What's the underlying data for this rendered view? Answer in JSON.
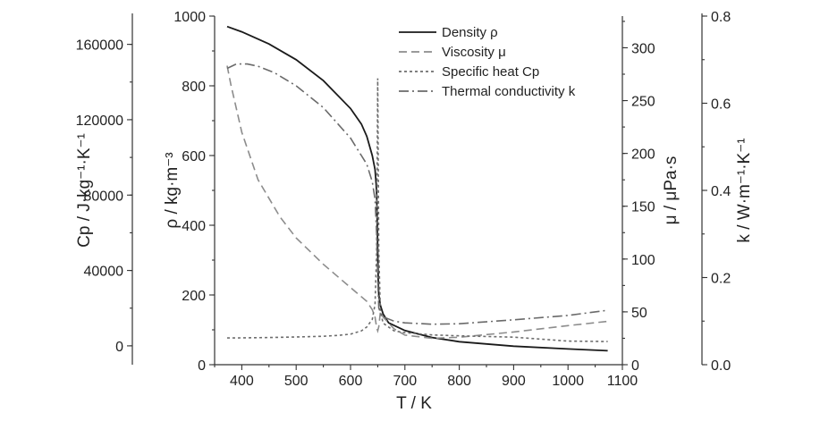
{
  "chart_data": {
    "type": "line",
    "xlabel": "T / K",
    "x_ticks": [
      "400",
      "500",
      "600",
      "700",
      "800",
      "900",
      "1000",
      "1100"
    ],
    "xlim": [
      350,
      1100
    ],
    "axes": {
      "rho": {
        "label": "ρ / kg·m⁻³",
        "ticks": [
          "0",
          "200",
          "400",
          "600",
          "800",
          "1000"
        ],
        "lim": [
          0,
          1000
        ]
      },
      "cp": {
        "label": "Cp / J·kg⁻¹·K⁻¹",
        "ticks": [
          "0",
          "40000",
          "80000",
          "120000",
          "160000"
        ],
        "lim": [
          -10000,
          175000
        ]
      },
      "mu": {
        "label": "μ / μPa·s",
        "ticks": [
          "0",
          "50",
          "100",
          "150",
          "200",
          "250",
          "300"
        ],
        "lim": [
          0,
          330
        ]
      },
      "k": {
        "label": "k / W·m⁻¹·K⁻¹",
        "ticks": [
          "0.0",
          "0.2",
          "0.4",
          "0.6",
          "0.8"
        ],
        "lim": [
          0,
          0.8
        ]
      }
    },
    "series": [
      {
        "name": "Density ρ",
        "axis": "rho",
        "color": "#1a1a1a",
        "dash": "",
        "x": [
          373,
          400,
          450,
          500,
          550,
          600,
          620,
          630,
          640,
          645,
          647,
          648,
          649,
          650,
          651,
          652,
          655,
          660,
          670,
          700,
          750,
          800,
          900,
          1000,
          1073
        ],
        "y": [
          970,
          955,
          920,
          875,
          815,
          735,
          690,
          655,
          600,
          560,
          520,
          490,
          420,
          330,
          240,
          200,
          170,
          145,
          120,
          98,
          78,
          66,
          53,
          45,
          40
        ]
      },
      {
        "name": "Viscosity μ",
        "axis": "mu",
        "color": "#8c8c8c",
        "dash": "9,5",
        "x": [
          373,
          380,
          400,
          430,
          470,
          500,
          550,
          600,
          630,
          640,
          645,
          648,
          650,
          652,
          655,
          660,
          680,
          700,
          750,
          800,
          900,
          1000,
          1073
        ],
        "y": [
          283,
          265,
          220,
          175,
          140,
          120,
          95,
          73,
          60,
          52,
          45,
          35,
          32,
          36,
          50,
          45,
          34,
          28,
          25,
          26,
          31,
          37,
          41
        ]
      },
      {
        "name": "Specific heat Cp",
        "axis": "cp",
        "color": "#6e6e6e",
        "dash": "3,3",
        "x": [
          373,
          400,
          450,
          500,
          550,
          580,
          600,
          620,
          630,
          640,
          645,
          648,
          650,
          652,
          655,
          660,
          680,
          700,
          750,
          800,
          900,
          1000,
          1073
        ],
        "y": [
          4200,
          4250,
          4400,
          4700,
          5100,
          5600,
          6200,
          8000,
          10000,
          14000,
          22000,
          50000,
          142000,
          50000,
          18000,
          12000,
          8000,
          7000,
          5800,
          5300,
          4600,
          2500,
          2300
        ]
      },
      {
        "name": "Thermal conductivity k",
        "axis": "k",
        "color": "#6a6a6a",
        "dash": "11,4,2,4",
        "x": [
          373,
          390,
          410,
          430,
          460,
          500,
          550,
          600,
          630,
          640,
          645,
          648,
          650,
          652,
          655,
          660,
          680,
          700,
          750,
          800,
          900,
          1000,
          1073
        ],
        "y": [
          0.68,
          0.69,
          0.69,
          0.685,
          0.67,
          0.64,
          0.59,
          0.52,
          0.46,
          0.42,
          0.38,
          0.3,
          0.2,
          0.13,
          0.12,
          0.11,
          0.1,
          0.096,
          0.093,
          0.094,
          0.103,
          0.113,
          0.125
        ]
      }
    ],
    "legend": "top-right"
  }
}
